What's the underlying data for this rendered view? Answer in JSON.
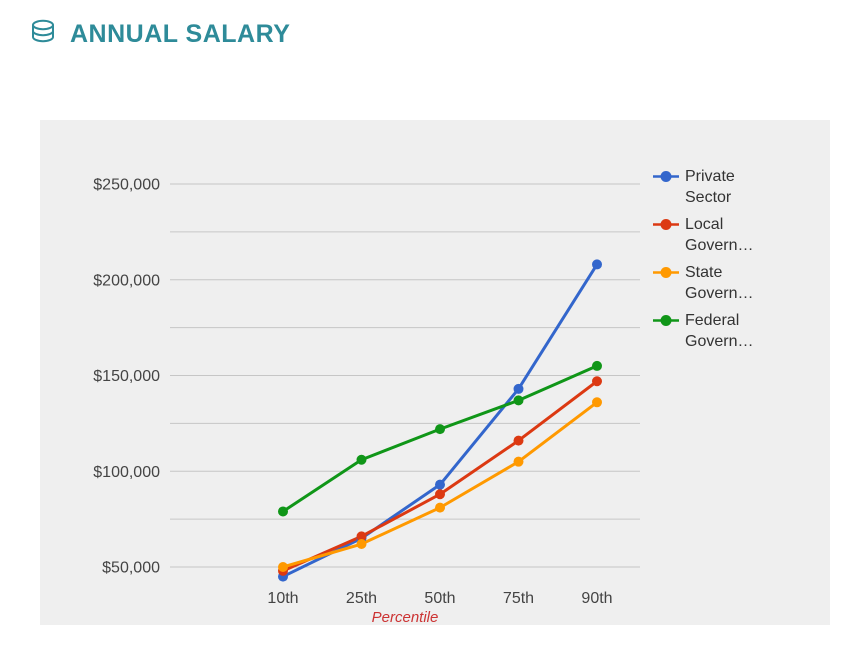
{
  "header": {
    "title": "ANNUAL SALARY",
    "icon": "coins-icon"
  },
  "style": {
    "title_color": "#2e8b99",
    "card_bg": "#efefef",
    "grid_color": "#c6c6c6",
    "axis_text_color": "#444444",
    "xlabel_color": "#cc3333",
    "legend_text_color": "#333333"
  },
  "chart_data": {
    "type": "line",
    "title": "ANNUAL SALARY",
    "xlabel": "Percentile",
    "ylabel": "",
    "categories": [
      "10th",
      "25th",
      "50th",
      "75th",
      "90th"
    ],
    "grid_min": 50000,
    "grid_max": 250000,
    "gridline_step": 25000,
    "ylim": [
      40000,
      265000
    ],
    "legend_position": "right",
    "y_ticks": [
      {
        "v": 50000,
        "label": "$50,000"
      },
      {
        "v": 100000,
        "label": "$100,000"
      },
      {
        "v": 150000,
        "label": "$150,000"
      },
      {
        "v": 200000,
        "label": "$200,000"
      },
      {
        "v": 250000,
        "label": "$250,000"
      }
    ],
    "series": [
      {
        "name": "Private Sector",
        "legend_lines": [
          "Private",
          "Sector"
        ],
        "color": "#3366cc",
        "values": [
          45000,
          65000,
          93000,
          143000,
          208000
        ]
      },
      {
        "name": "Local Govern…",
        "legend_lines": [
          "Local",
          "Govern…"
        ],
        "color": "#dc3912",
        "values": [
          48000,
          66000,
          88000,
          116000,
          147000
        ]
      },
      {
        "name": "State Govern…",
        "legend_lines": [
          "State",
          "Govern…"
        ],
        "color": "#ff9900",
        "values": [
          50000,
          62000,
          81000,
          105000,
          136000
        ]
      },
      {
        "name": "Federal Govern…",
        "legend_lines": [
          "Federal",
          "Govern…"
        ],
        "color": "#109618",
        "values": [
          79000,
          106000,
          122000,
          137000,
          155000
        ]
      }
    ]
  }
}
